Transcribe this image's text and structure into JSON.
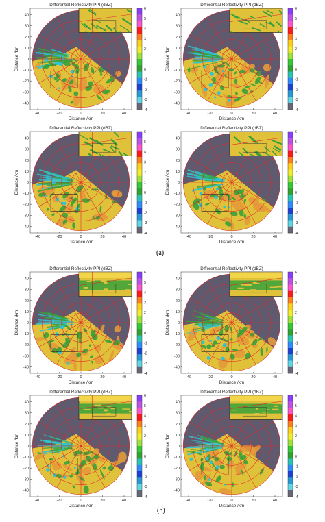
{
  "chart_data": {
    "type": "heatmap",
    "title": "Differential Reflectivity PPI (dBZ)",
    "xlabel": "Distance /km",
    "ylabel": "Distance /km",
    "x_ticks": [
      "-40",
      "-20",
      "0",
      "20",
      "40"
    ],
    "y_ticks": [
      "40",
      "30",
      "20",
      "10",
      "0",
      "-10",
      "-20",
      "-30",
      "-40"
    ],
    "xlim": [
      -47,
      47
    ],
    "ylim": [
      -46,
      46
    ],
    "grid": "polar range rings and radials",
    "legend": "colorbar right",
    "colorbar": {
      "min": -4,
      "max": 6,
      "ticks": [
        "6",
        "5",
        "4",
        "3",
        "2",
        "1",
        "0",
        "-1",
        "-2",
        "-3",
        "-4"
      ],
      "colors": [
        "#8a3cff",
        "#c050e6",
        "#ff55cc",
        "#ff1a1a",
        "#ff7f1a",
        "#ffcf1a",
        "#f1ed2c",
        "#9fe23a",
        "#35c935",
        "#2fa32f",
        "#27c6b3",
        "#2d8dff",
        "#1c40d6",
        "#2a9ad6",
        "#5fd6e6",
        "#666677"
      ]
    },
    "panel_labels": [
      "(a)",
      "(b)"
    ]
  },
  "colors": {
    "disc_bg": "#5f5a6e",
    "ring": "#e1262c",
    "field_yellow": "#e0c23a",
    "field_orange": "#e49a3a",
    "field_green": "#3aa13a",
    "field_cyan": "#2fc3d3"
  }
}
